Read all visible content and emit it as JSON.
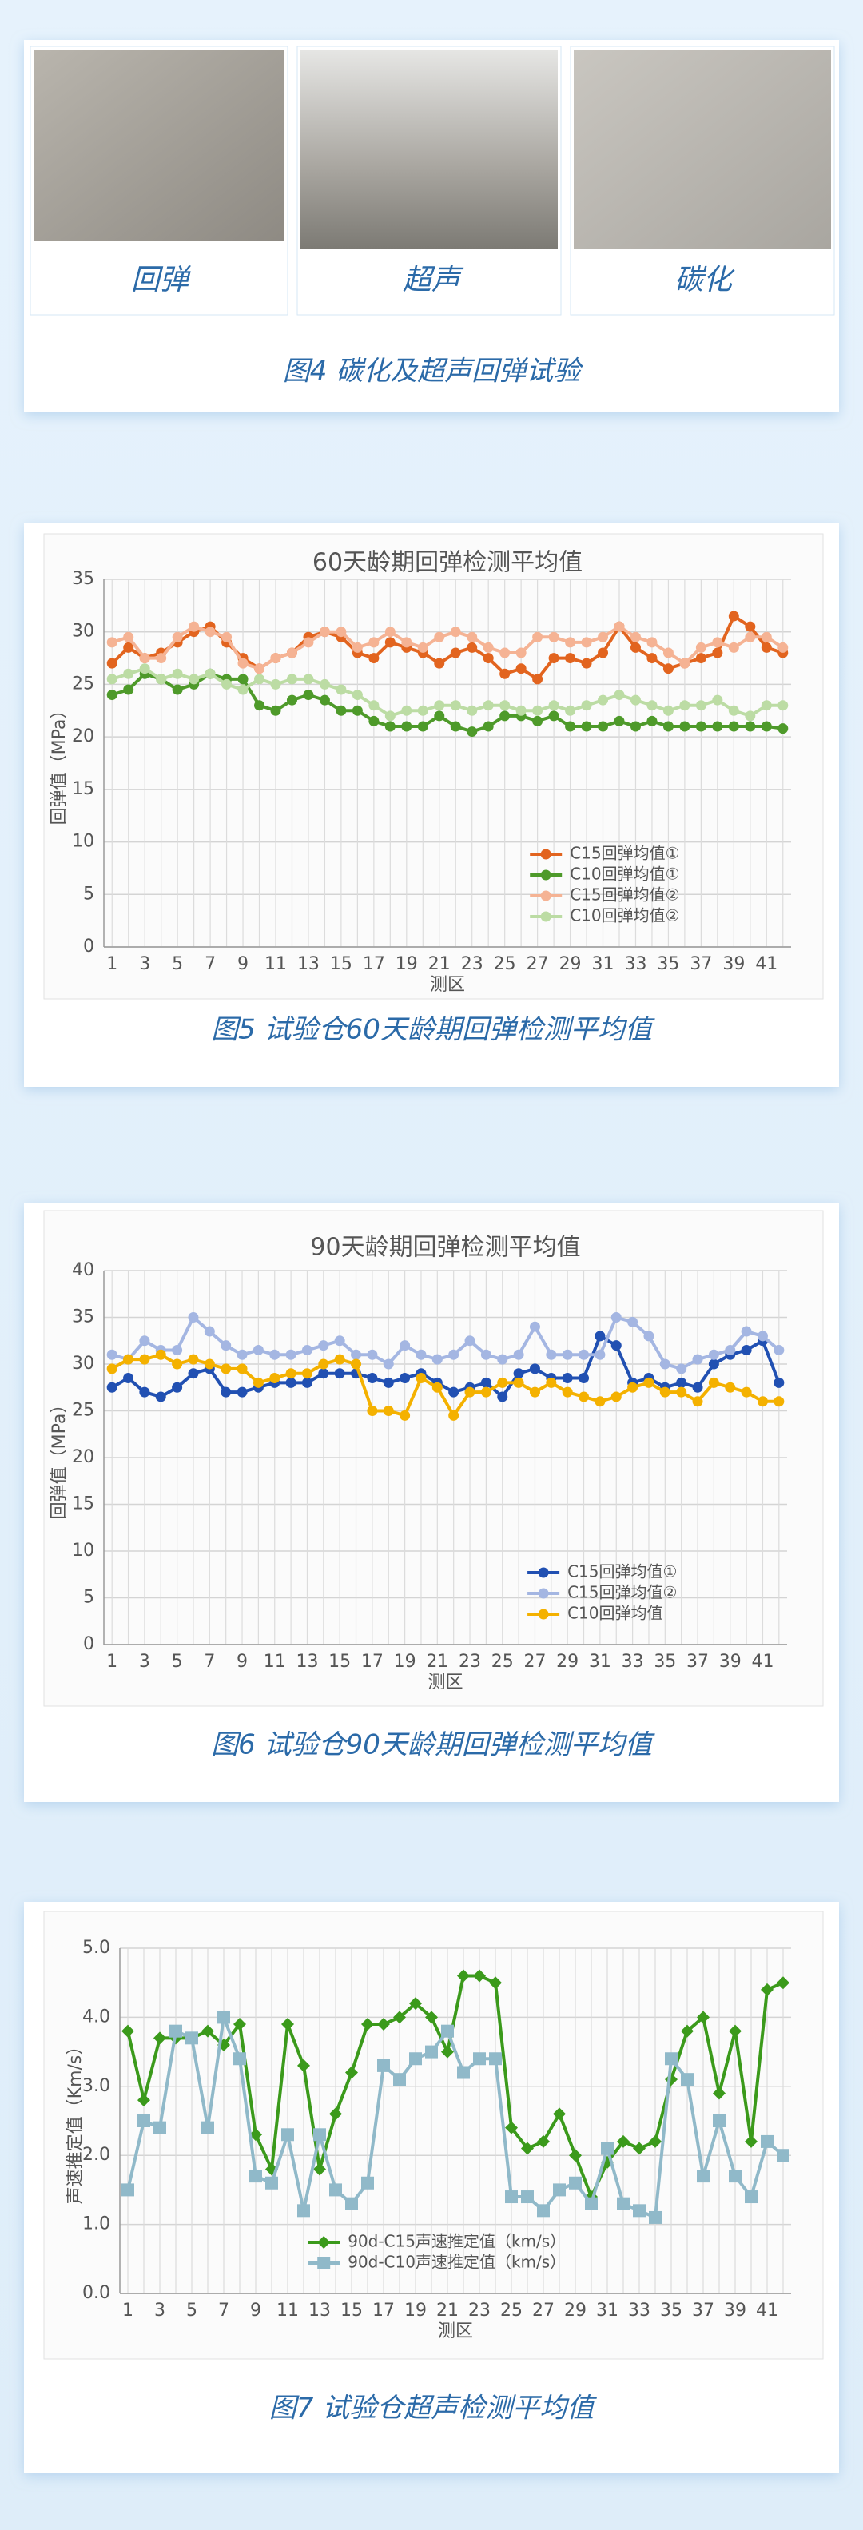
{
  "figure4": {
    "photos": [
      {
        "label": "回弹"
      },
      {
        "label": "超声"
      },
      {
        "label": "碳化"
      }
    ],
    "caption": "图4  碳化及超声回弹试验"
  },
  "chart_data": [
    {
      "type": "line",
      "title": "60天龄期回弹检测平均值",
      "caption": "图5   试验仓60天龄期回弹检测平均值",
      "x_label": "测区",
      "y_label": "回弹值（MPa）",
      "x": [
        1,
        2,
        3,
        4,
        5,
        6,
        7,
        8,
        9,
        10,
        11,
        12,
        13,
        14,
        15,
        16,
        17,
        18,
        19,
        20,
        21,
        22,
        23,
        24,
        25,
        26,
        27,
        28,
        29,
        30,
        31,
        32,
        33,
        34,
        35,
        36,
        37,
        38,
        39,
        40,
        41,
        42
      ],
      "xlim": [
        0.5,
        42.5
      ],
      "xticks": [
        1,
        3,
        5,
        7,
        9,
        11,
        13,
        15,
        17,
        19,
        21,
        23,
        25,
        27,
        29,
        31,
        33,
        35,
        37,
        39,
        41
      ],
      "ylim": [
        0,
        35
      ],
      "yticks": [
        0,
        5,
        10,
        15,
        20,
        25,
        30,
        35
      ],
      "grid": true,
      "legend": "lower right",
      "series": [
        {
          "name": "C15回弹均值①",
          "color": "#e2641f",
          "marker": "circle",
          "values": [
            27,
            28.5,
            27.5,
            28,
            29,
            30,
            30.5,
            29,
            27.5,
            26.5,
            27.5,
            28,
            29.5,
            30,
            29.5,
            28,
            27.5,
            29,
            28.5,
            28,
            27,
            28,
            28.5,
            27.5,
            26,
            26.5,
            25.5,
            27.5,
            27.5,
            27,
            28,
            30.5,
            28.5,
            27.5,
            26.5,
            27,
            27.5,
            28,
            31.5,
            30.5,
            28.5,
            28
          ]
        },
        {
          "name": "C10回弹均值①",
          "color": "#4e9a2a",
          "marker": "circle",
          "values": [
            24,
            24.5,
            26,
            25.5,
            24.5,
            25,
            26,
            25.5,
            25.5,
            23,
            22.5,
            23.5,
            24,
            23.5,
            22.5,
            22.5,
            21.5,
            21,
            21,
            21,
            22,
            21,
            20.5,
            21,
            22,
            22,
            21.5,
            22,
            21,
            21,
            21,
            21.5,
            21,
            21.5,
            21,
            21,
            21,
            21,
            21,
            21,
            21,
            20.8
          ]
        },
        {
          "name": "C15回弹均值②",
          "color": "#f5b394",
          "marker": "circle",
          "values": [
            29,
            29.5,
            27.5,
            27.5,
            29.5,
            30.5,
            30,
            29.5,
            27,
            26.5,
            27.5,
            28,
            29,
            30,
            30,
            28.5,
            29,
            30,
            29,
            28.5,
            29.5,
            30,
            29.5,
            28.5,
            28,
            28,
            29.5,
            29.5,
            29,
            29,
            29.5,
            30.5,
            29.5,
            29,
            28,
            27,
            28.5,
            29,
            28.5,
            29.5,
            29.5,
            28.5
          ]
        },
        {
          "name": "C10回弹均值②",
          "color": "#bcdca4",
          "marker": "circle",
          "values": [
            25.5,
            26,
            26.5,
            25.5,
            26,
            25.5,
            26,
            25,
            24.5,
            25.5,
            25,
            25.5,
            25.5,
            25,
            24.5,
            24,
            23,
            22,
            22.5,
            22.5,
            23,
            23,
            22.5,
            23,
            23,
            22.5,
            22.5,
            23,
            22.5,
            23,
            23.5,
            24,
            23.5,
            23,
            22.5,
            23,
            23,
            23.5,
            22.5,
            22,
            23,
            23
          ]
        }
      ]
    },
    {
      "type": "line",
      "title": "90天龄期回弹检测平均值",
      "caption": "图6   试验仓90天龄期回弹检测平均值",
      "x_label": "测区",
      "y_label": "回弹值（MPa）",
      "x": [
        1,
        2,
        3,
        4,
        5,
        6,
        7,
        8,
        9,
        10,
        11,
        12,
        13,
        14,
        15,
        16,
        17,
        18,
        19,
        20,
        21,
        22,
        23,
        24,
        25,
        26,
        27,
        28,
        29,
        30,
        31,
        32,
        33,
        34,
        35,
        36,
        37,
        38,
        39,
        40,
        41,
        42
      ],
      "xlim": [
        0.5,
        42.5
      ],
      "xticks": [
        1,
        3,
        5,
        7,
        9,
        11,
        13,
        15,
        17,
        19,
        21,
        23,
        25,
        27,
        29,
        31,
        33,
        35,
        37,
        39,
        41
      ],
      "ylim": [
        0,
        40
      ],
      "yticks": [
        0,
        5,
        10,
        15,
        20,
        25,
        30,
        35,
        40
      ],
      "grid": true,
      "legend": "lower right",
      "series": [
        {
          "name": "C15回弹均值①",
          "color": "#2150b2",
          "marker": "circle",
          "values": [
            27.5,
            28.5,
            27,
            26.5,
            27.5,
            29,
            29.5,
            27,
            27,
            27.5,
            28,
            28,
            28,
            29,
            29,
            29,
            28.5,
            28,
            28.5,
            29,
            28,
            27,
            27.5,
            28,
            26.5,
            29,
            29.5,
            28.5,
            28.5,
            28.5,
            33,
            32,
            28,
            28.5,
            27.5,
            28,
            27.5,
            30,
            31,
            31.5,
            32.5,
            28
          ]
        },
        {
          "name": "C15回弹均值②",
          "color": "#a4b6e2",
          "marker": "circle",
          "values": [
            31,
            30.5,
            32.5,
            31.5,
            31.5,
            35,
            33.5,
            32,
            31,
            31.5,
            31,
            31,
            31.5,
            32,
            32.5,
            31,
            31,
            30,
            32,
            31,
            30.5,
            31,
            32.5,
            31,
            30.5,
            31,
            34,
            31,
            31,
            31,
            31,
            35,
            34.5,
            33,
            30,
            29.5,
            30.5,
            31,
            31.5,
            33.5,
            33,
            31.5
          ]
        },
        {
          "name": "C10回弹均值",
          "color": "#f4b100",
          "marker": "circle",
          "values": [
            29.5,
            30.5,
            30.5,
            31,
            30,
            30.5,
            30,
            29.5,
            29.5,
            28,
            28.5,
            29,
            29,
            30,
            30.5,
            30,
            25,
            25,
            24.5,
            28.5,
            27.5,
            24.5,
            27,
            27,
            28,
            28,
            27,
            28,
            27,
            26.5,
            26,
            26.5,
            27.5,
            28,
            27,
            27,
            26,
            28,
            27.5,
            27,
            26,
            26
          ]
        }
      ]
    },
    {
      "type": "line",
      "caption": "图7   试验仓超声检测平均值",
      "x_label": "测区",
      "y_label": "声速推定值（Km/s）",
      "x": [
        1,
        2,
        3,
        4,
        5,
        6,
        7,
        8,
        9,
        10,
        11,
        12,
        13,
        14,
        15,
        16,
        17,
        18,
        19,
        20,
        21,
        22,
        23,
        24,
        25,
        26,
        27,
        28,
        29,
        30,
        31,
        32,
        33,
        34,
        35,
        36,
        37,
        38,
        39,
        40,
        41,
        42
      ],
      "xlim": [
        0.5,
        42.5
      ],
      "xticks": [
        1,
        3,
        5,
        7,
        9,
        11,
        13,
        15,
        17,
        19,
        21,
        23,
        25,
        27,
        29,
        31,
        33,
        35,
        37,
        39,
        41
      ],
      "ylim": [
        0,
        5
      ],
      "yticks": [
        {
          "value": 0,
          "label": "0.0"
        },
        {
          "value": 1,
          "label": "1.0"
        },
        {
          "value": 2,
          "label": "2.0"
        },
        {
          "value": 3,
          "label": "3.0"
        },
        {
          "value": 4,
          "label": "4.0"
        },
        {
          "value": 5,
          "label": "5.0"
        }
      ],
      "grid": true,
      "legend": "lower center",
      "series": [
        {
          "name": "90d-C15声速推定值（km/s）",
          "color": "#3b9a1b",
          "marker": "diamond",
          "values": [
            3.8,
            2.8,
            3.7,
            3.7,
            3.7,
            3.8,
            3.6,
            3.9,
            2.3,
            1.8,
            3.9,
            3.3,
            1.8,
            2.6,
            3.2,
            3.9,
            3.9,
            4.0,
            4.2,
            4.0,
            3.5,
            4.6,
            4.6,
            4.5,
            2.4,
            2.1,
            2.2,
            2.6,
            2.0,
            1.4,
            1.9,
            2.2,
            2.1,
            2.2,
            3.1,
            3.8,
            4.0,
            2.9,
            3.8,
            2.2,
            4.4,
            4.5
          ]
        },
        {
          "name": "90d-C10声速推定值（km/s）",
          "color": "#90b9c9",
          "marker": "square",
          "values": [
            1.5,
            2.5,
            2.4,
            3.8,
            3.7,
            2.4,
            4.0,
            3.4,
            1.7,
            1.6,
            2.3,
            1.2,
            2.3,
            1.5,
            1.3,
            1.6,
            3.3,
            3.1,
            3.4,
            3.5,
            3.8,
            3.2,
            3.4,
            3.4,
            1.4,
            1.4,
            1.2,
            1.5,
            1.6,
            1.3,
            2.1,
            1.3,
            1.2,
            1.1,
            3.4,
            3.1,
            1.7,
            2.5,
            1.7,
            1.4,
            2.2,
            2.0
          ]
        }
      ]
    }
  ]
}
